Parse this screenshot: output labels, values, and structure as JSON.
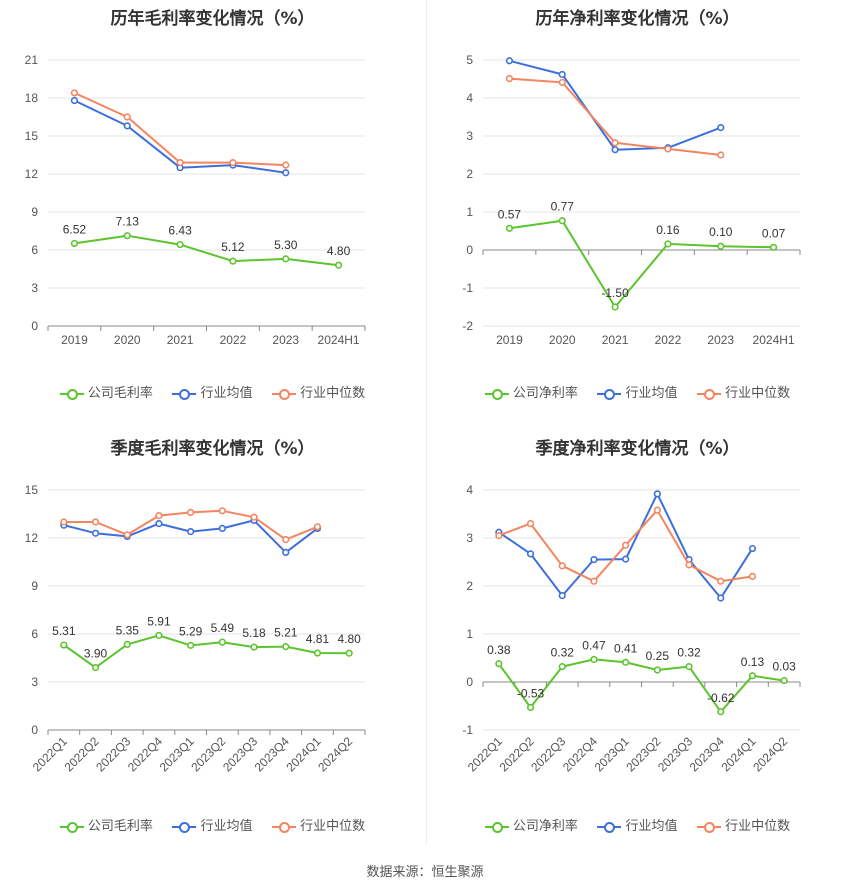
{
  "colors": {
    "company": "#5cc42c",
    "industry_avg": "#3d6fdb",
    "industry_median": "#f48560",
    "grid": "#e6e6e6",
    "axis": "#888888",
    "text": "#555555"
  },
  "source_label": "数据来源：恒生聚源",
  "chart_data": [
    {
      "type": "line",
      "title": "历年毛利率变化情况（%）",
      "categories": [
        "2019",
        "2020",
        "2021",
        "2022",
        "2023",
        "2024H1"
      ],
      "ylim": [
        0,
        21
      ],
      "yticks": [
        0,
        3,
        6,
        9,
        12,
        15,
        18,
        21
      ],
      "xlabel_rotate": false,
      "legend": {
        "position": "bottom",
        "labels": [
          "公司毛利率",
          "行业均值",
          "行业中位数"
        ]
      },
      "series": [
        {
          "name": "公司毛利率",
          "color": "#5cc42c",
          "labeled": true,
          "values": [
            6.52,
            7.13,
            6.43,
            5.12,
            5.3,
            4.8
          ],
          "labels": [
            "6.52",
            "7.13",
            "6.43",
            "5.12",
            "5.30",
            "4.80"
          ]
        },
        {
          "name": "行业均值",
          "color": "#3d6fdb",
          "labeled": false,
          "values": [
            17.8,
            15.8,
            12.5,
            12.7,
            12.1,
            null
          ]
        },
        {
          "name": "行业中位数",
          "color": "#f48560",
          "labeled": false,
          "values": [
            18.4,
            16.5,
            12.9,
            12.9,
            12.7,
            null
          ]
        }
      ]
    },
    {
      "type": "line",
      "title": "历年净利率变化情况（%）",
      "categories": [
        "2019",
        "2020",
        "2021",
        "2022",
        "2023",
        "2024H1"
      ],
      "ylim": [
        -2,
        5
      ],
      "yticks": [
        -2,
        -1,
        0,
        1,
        2,
        3,
        4,
        5
      ],
      "xlabel_rotate": false,
      "legend": {
        "position": "bottom",
        "labels": [
          "公司净利率",
          "行业均值",
          "行业中位数"
        ]
      },
      "series": [
        {
          "name": "公司净利率",
          "color": "#5cc42c",
          "labeled": true,
          "values": [
            0.57,
            0.77,
            -1.5,
            0.16,
            0.1,
            0.07
          ],
          "labels": [
            "0.57",
            "0.77",
            "-1.50",
            "0.16",
            "0.10",
            "0.07"
          ]
        },
        {
          "name": "行业均值",
          "color": "#3d6fdb",
          "labeled": false,
          "values": [
            4.98,
            4.62,
            2.64,
            2.69,
            3.22,
            null
          ]
        },
        {
          "name": "行业中位数",
          "color": "#f48560",
          "labeled": false,
          "values": [
            4.51,
            4.41,
            2.82,
            2.66,
            2.5,
            null
          ]
        }
      ]
    },
    {
      "type": "line",
      "title": "季度毛利率变化情况（%）",
      "categories": [
        "2022Q1",
        "2022Q2",
        "2022Q3",
        "2022Q4",
        "2023Q1",
        "2023Q2",
        "2023Q3",
        "2023Q4",
        "2024Q1",
        "2024Q2"
      ],
      "ylim": [
        0,
        15
      ],
      "yticks": [
        0,
        3,
        6,
        9,
        12,
        15
      ],
      "xlabel_rotate": true,
      "legend": {
        "position": "bottom",
        "labels": [
          "公司毛利率",
          "行业均值",
          "行业中位数"
        ]
      },
      "series": [
        {
          "name": "公司毛利率",
          "color": "#5cc42c",
          "labeled": true,
          "values": [
            5.31,
            3.9,
            5.35,
            5.91,
            5.29,
            5.49,
            5.18,
            5.21,
            4.81,
            4.8
          ],
          "labels": [
            "5.31",
            "3.90",
            "5.35",
            "5.91",
            "5.29",
            "5.49",
            "5.18",
            "5.21",
            "4.81",
            "4.80"
          ]
        },
        {
          "name": "行业均值",
          "color": "#3d6fdb",
          "labeled": false,
          "values": [
            12.8,
            12.3,
            12.1,
            12.9,
            12.4,
            12.6,
            13.1,
            11.1,
            12.6,
            null
          ]
        },
        {
          "name": "行业中位数",
          "color": "#f48560",
          "labeled": false,
          "values": [
            13.0,
            13.0,
            12.2,
            13.4,
            13.6,
            13.7,
            13.3,
            11.9,
            12.7,
            null
          ]
        }
      ]
    },
    {
      "type": "line",
      "title": "季度净利率变化情况（%）",
      "categories": [
        "2022Q1",
        "2022Q2",
        "2022Q3",
        "2022Q4",
        "2023Q1",
        "2023Q2",
        "2023Q3",
        "2023Q4",
        "2024Q1",
        "2024Q2"
      ],
      "ylim": [
        -1,
        4
      ],
      "yticks": [
        -1,
        0,
        1,
        2,
        3,
        4
      ],
      "xlabel_rotate": true,
      "legend": {
        "position": "bottom",
        "labels": [
          "公司净利率",
          "行业均值",
          "行业中位数"
        ]
      },
      "series": [
        {
          "name": "公司净利率",
          "color": "#5cc42c",
          "labeled": true,
          "values": [
            0.38,
            -0.53,
            0.32,
            0.47,
            0.41,
            0.25,
            0.32,
            -0.62,
            0.13,
            0.03
          ],
          "labels": [
            "0.38",
            "-0.53",
            "0.32",
            "0.47",
            "0.41",
            "0.25",
            "0.32",
            "-0.62",
            "0.13",
            "0.03"
          ]
        },
        {
          "name": "行业均值",
          "color": "#3d6fdb",
          "labeled": false,
          "values": [
            3.12,
            2.67,
            1.8,
            2.55,
            2.56,
            3.92,
            2.55,
            1.75,
            2.78,
            null
          ]
        },
        {
          "name": "行业中位数",
          "color": "#f48560",
          "labeled": false,
          "values": [
            3.05,
            3.3,
            2.42,
            2.1,
            2.85,
            3.58,
            2.44,
            2.1,
            2.2,
            null
          ]
        }
      ]
    }
  ]
}
